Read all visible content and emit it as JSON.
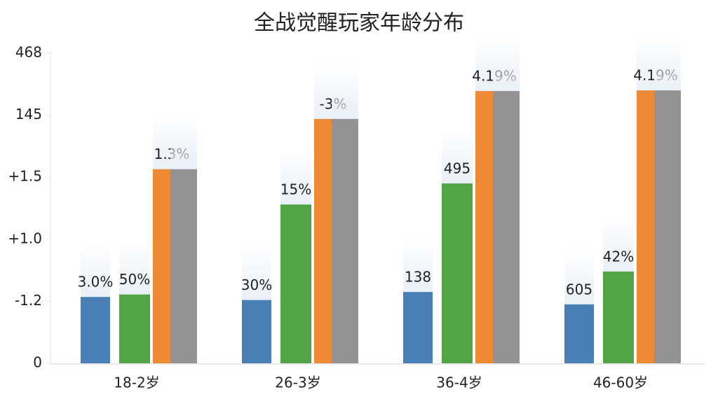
{
  "chart_data": {
    "type": "bar",
    "title": "全战觉醒玩家年龄分布",
    "categories": [
      "18-2岁",
      "26-3岁",
      "36-4岁",
      "46-60岁"
    ],
    "series": [
      {
        "color": "#4a7fb5",
        "values": [
          1.07,
          1.02,
          1.15,
          0.95
        ],
        "labels": [
          "3.0%",
          "30%",
          "138",
          "605"
        ]
      },
      {
        "color": "#52a447",
        "values": [
          1.11,
          2.56,
          2.9,
          1.48
        ],
        "labels": [
          "50%",
          "15%",
          "495",
          "42%"
        ]
      },
      {
        "color": "#ee8a35",
        "values": [
          3.13,
          3.94,
          4.39,
          4.4
        ],
        "labels": [
          "1.3%",
          "-3%",
          "4.19%",
          "4.19%"
        ]
      },
      {
        "color": "#939393",
        "values": [
          3.13,
          3.94,
          4.39,
          4.4
        ]
      }
    ],
    "ylim": [
      0,
      5
    ],
    "yticks": [
      0,
      {
        "value": 1,
        "label": "-1.2"
      },
      {
        "value": 2,
        "label": "+1.0"
      },
      {
        "value": 3,
        "label": "+1.5"
      },
      {
        "value": 4,
        "label": "145"
      },
      {
        "value": 5,
        "label": "468"
      }
    ],
    "grid": false
  }
}
